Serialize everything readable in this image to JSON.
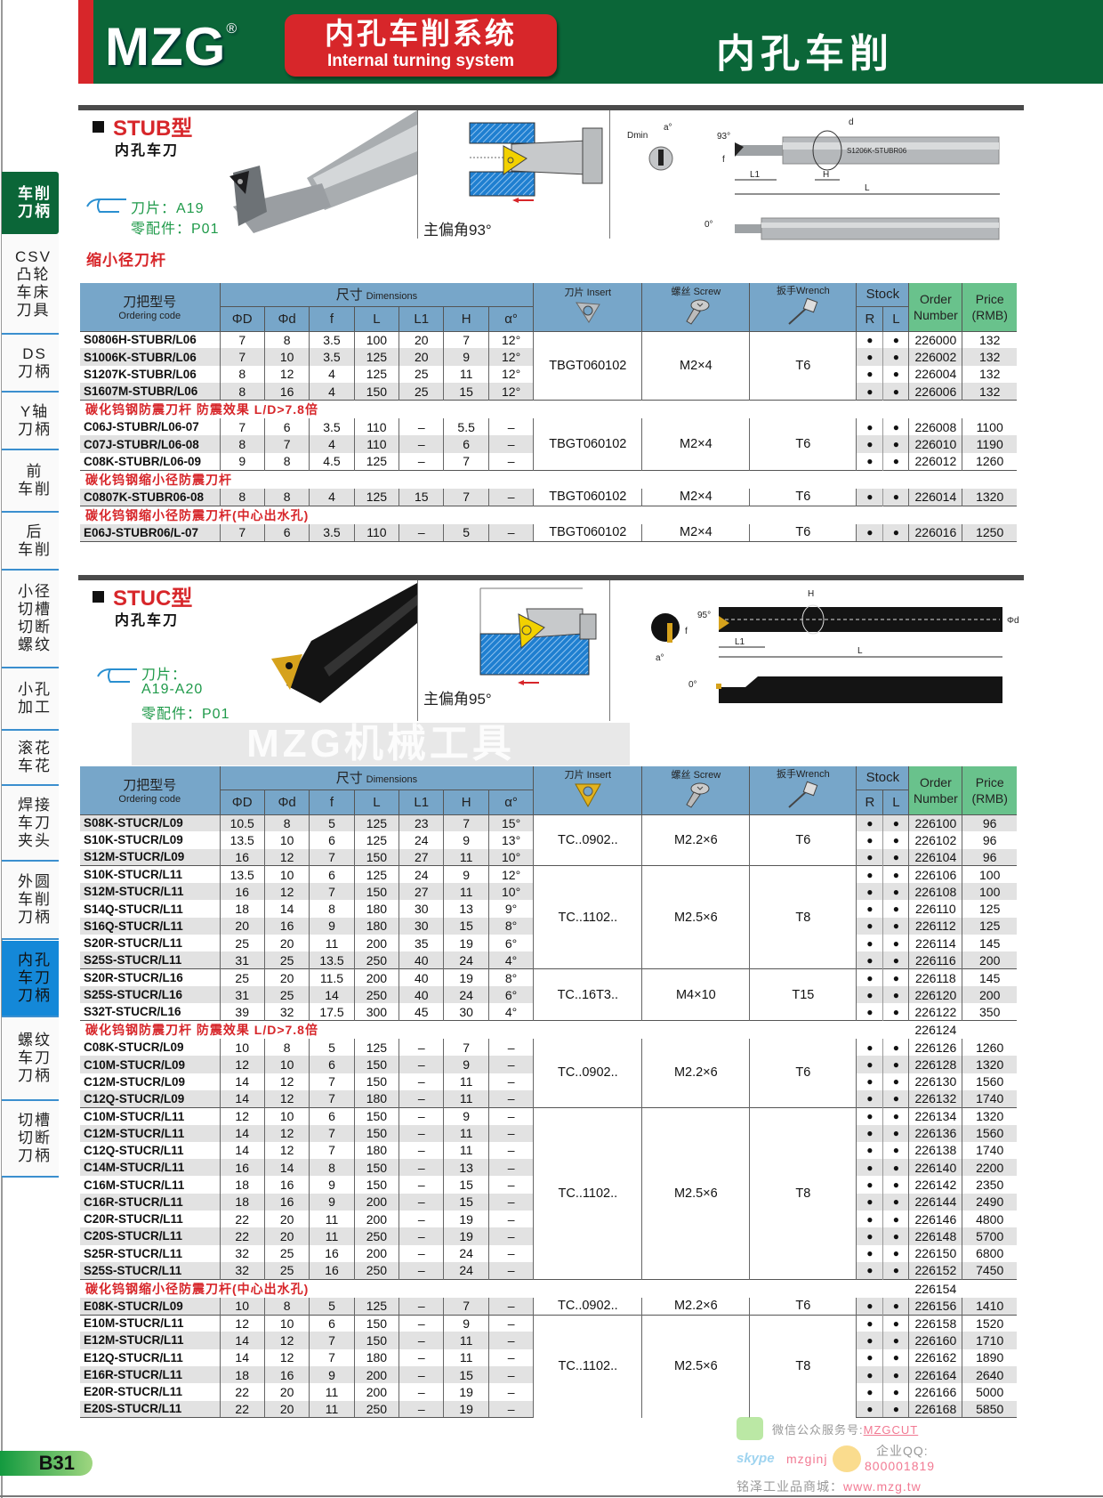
{
  "header": {
    "brand": "MZG",
    "registered": "®",
    "system_cn": "内孔车削系统",
    "system_en": "Internal turning system",
    "title": "内孔车削"
  },
  "colors": {
    "header_green": "#0b6638",
    "accent_red": "#d7262a",
    "table_header_blue": "#77a6c9",
    "table_header_green": "#69c28c",
    "active_tab_blue": "#1488d8"
  },
  "sidebar": {
    "items": [
      {
        "label": "车削\n刀柄",
        "state": "active-green"
      },
      {
        "label": "CSV\n凸轮\n车床\n刀具"
      },
      {
        "label": "DS\n刀柄"
      },
      {
        "label": "Y轴\n刀柄"
      },
      {
        "label": "前\n车削"
      },
      {
        "label": "后\n车削"
      },
      {
        "label": "小径\n切槽\n切断\n螺纹"
      },
      {
        "label": "小孔\n加工"
      },
      {
        "label": "滚花\n车花"
      },
      {
        "label": "焊接\n车刀\n夹头"
      },
      {
        "label": "外圆\n车削\n刀柄"
      },
      {
        "label": "内孔\n车刀\n刀柄",
        "state": "active-blue"
      },
      {
        "label": "螺纹\n车刀\n刀柄"
      },
      {
        "label": "切槽\n切断\n刀柄"
      }
    ]
  },
  "stub": {
    "title": "STUB型",
    "subtitle": "内孔车刀",
    "insert_label": "刀片：A19",
    "parts_label": "零配件：P01",
    "angle_caption": "主偏角93°",
    "reduced_label": "缩小径刀杆",
    "drawing": {
      "dmin": "Dmin",
      "a": "a°",
      "angle": "93°",
      "f": "f",
      "d": "d",
      "L1": "L1",
      "H": "H",
      "L": "L",
      "zero": "0°",
      "marking": "S1206K-STUBR06"
    }
  },
  "stuc": {
    "title": "STUC型",
    "subtitle": "内孔车刀",
    "insert_label": "刀片：",
    "insert_value": "A19-A20",
    "parts_label": "零配件：P01",
    "angle_caption": "主偏角95°",
    "drawing": {
      "H": "H",
      "angle": "95°",
      "f": "f",
      "d": "Φd",
      "L1": "L1",
      "L": "L",
      "a": "a°",
      "zero": "0°"
    }
  },
  "watermark": "MZG机械工具",
  "table_header": {
    "code_cn": "刀把型号",
    "code_en": "Ordering code",
    "dims_cn": "尺寸",
    "dims_en": "Dimensions",
    "insert": "刀片 Insert",
    "screw": "螺丝 Screw",
    "wrench": "扳手Wrench",
    "stock": "Stock",
    "order1": "Order",
    "order2": "Number",
    "price1": "Price",
    "price2": "(RMB)",
    "cols": [
      "ΦD",
      "Φd",
      "f",
      "L",
      "L1",
      "H",
      "α°"
    ],
    "stock_cols": [
      "R",
      "L"
    ]
  },
  "stub_table": {
    "groups": [
      {
        "label": "",
        "blocks": [
          {
            "insert": "TBGT060102",
            "screw": "M2×4",
            "wrench": "T6",
            "rows": [
              [
                "S0806H-STUBR/L06",
                "7",
                "8",
                "3.5",
                "100",
                "20",
                "7",
                "12°",
                "●",
                "●",
                "226000",
                "132"
              ],
              [
                "S1006K-STUBR/L06",
                "7",
                "10",
                "3.5",
                "125",
                "20",
                "9",
                "12°",
                "●",
                "●",
                "226002",
                "132"
              ],
              [
                "S1207K-STUBR/L06",
                "8",
                "12",
                "4",
                "125",
                "25",
                "11",
                "12°",
                "●",
                "●",
                "226004",
                "132"
              ],
              [
                "S1607M-STUBR/L06",
                "8",
                "16",
                "4",
                "150",
                "25",
                "15",
                "12°",
                "●",
                "●",
                "226006",
                "132"
              ]
            ]
          }
        ]
      },
      {
        "label": "碳化钨钢防震刀杆  防震效果 L/D>7.8倍",
        "blocks": [
          {
            "insert": "TBGT060102",
            "screw": "M2×4",
            "wrench": "T6",
            "rows": [
              [
                "C06J-STUBR/L06-07",
                "7",
                "6",
                "3.5",
                "110",
                "–",
                "5.5",
                "–",
                "●",
                "●",
                "226008",
                "1100"
              ],
              [
                "C07J-STUBR/L06-08",
                "8",
                "7",
                "4",
                "110",
                "–",
                "6",
                "–",
                "●",
                "●",
                "226010",
                "1190"
              ],
              [
                "C08K-STUBR/L06-09",
                "9",
                "8",
                "4.5",
                "125",
                "–",
                "7",
                "–",
                "●",
                "●",
                "226012",
                "1260"
              ]
            ]
          }
        ]
      },
      {
        "label": "碳化钨钢缩小径防震刀杆",
        "blocks": [
          {
            "insert": "TBGT060102",
            "screw": "M2×4",
            "wrench": "T6",
            "rows": [
              [
                "C0807K-STUBR06-08",
                "8",
                "8",
                "4",
                "125",
                "15",
                "7",
                "–",
                "●",
                "●",
                "226014",
                "1320"
              ]
            ]
          }
        ]
      },
      {
        "label": "碳化钨钢缩小径防震刀杆(中心出水孔)",
        "blocks": [
          {
            "insert": "TBGT060102",
            "screw": "M2×4",
            "wrench": "T6",
            "rows": [
              [
                "E06J-STUBR06/L-07",
                "7",
                "6",
                "3.5",
                "110",
                "–",
                "5",
                "–",
                "●",
                "●",
                "226016",
                "1250"
              ]
            ]
          }
        ]
      }
    ]
  },
  "stuc_table": {
    "groups": [
      {
        "label": "",
        "blocks": [
          {
            "insert": "TC..0902..",
            "screw": "M2.2×6",
            "wrench": "T6",
            "rows": [
              [
                "S08K-STUCR/L09",
                "10.5",
                "8",
                "5",
                "125",
                "23",
                "7",
                "15°",
                "●",
                "●",
                "226100",
                "96"
              ],
              [
                "S10K-STUCR/L09",
                "13.5",
                "10",
                "6",
                "125",
                "24",
                "9",
                "13°",
                "●",
                "●",
                "226102",
                "96"
              ],
              [
                "S12M-STUCR/L09",
                "16",
                "12",
                "7",
                "150",
                "27",
                "11",
                "10°",
                "●",
                "●",
                "226104",
                "96"
              ]
            ]
          },
          {
            "insert": "TC..1102..",
            "screw": "M2.5×6",
            "wrench": "T8",
            "rows": [
              [
                "S10K-STUCR/L11",
                "13.5",
                "10",
                "6",
                "125",
                "24",
                "9",
                "12°",
                "●",
                "●",
                "226106",
                "100"
              ],
              [
                "S12M-STUCR/L11",
                "16",
                "12",
                "7",
                "150",
                "27",
                "11",
                "10°",
                "●",
                "●",
                "226108",
                "100"
              ],
              [
                "S14Q-STUCR/L11",
                "18",
                "14",
                "8",
                "180",
                "30",
                "13",
                "9°",
                "●",
                "●",
                "226110",
                "125"
              ],
              [
                "S16Q-STUCR/L11",
                "20",
                "16",
                "9",
                "180",
                "30",
                "15",
                "8°",
                "●",
                "●",
                "226112",
                "125"
              ],
              [
                "S20R-STUCR/L11",
                "25",
                "20",
                "11",
                "200",
                "35",
                "19",
                "6°",
                "●",
                "●",
                "226114",
                "145"
              ],
              [
                "S25S-STUCR/L11",
                "31",
                "25",
                "13.5",
                "250",
                "40",
                "24",
                "4°",
                "●",
                "●",
                "226116",
                "200"
              ]
            ]
          },
          {
            "insert": "TC..16T3..",
            "screw": "M4×10",
            "wrench": "T15",
            "rows": [
              [
                "S20R-STUCR/L16",
                "25",
                "20",
                "11.5",
                "200",
                "40",
                "19",
                "8°",
                "●",
                "●",
                "226118",
                "145"
              ],
              [
                "S25S-STUCR/L16",
                "31",
                "25",
                "14",
                "250",
                "40",
                "24",
                "6°",
                "●",
                "●",
                "226120",
                "200"
              ],
              [
                "S32T-STUCR/L16",
                "39",
                "32",
                "17.5",
                "300",
                "45",
                "30",
                "4°",
                "●",
                "●",
                "226122",
                "350"
              ]
            ]
          }
        ]
      },
      {
        "label": "碳化钨钢防震刀杆  防震效果 L/D>7.8倍",
        "label_order": "226124",
        "blocks": [
          {
            "insert": "TC..0902..",
            "screw": "M2.2×6",
            "wrench": "T6",
            "rows": [
              [
                "C08K-STUCR/L09",
                "10",
                "8",
                "5",
                "125",
                "–",
                "7",
                "–",
                "●",
                "●",
                "226126",
                "1260"
              ],
              [
                "C10M-STUCR/L09",
                "12",
                "10",
                "6",
                "150",
                "–",
                "9",
                "–",
                "●",
                "●",
                "226128",
                "1320"
              ],
              [
                "C12M-STUCR/L09",
                "14",
                "12",
                "7",
                "150",
                "–",
                "11",
                "–",
                "●",
                "●",
                "226130",
                "1560"
              ],
              [
                "C12Q-STUCR/L09",
                "14",
                "12",
                "7",
                "180",
                "–",
                "11",
                "–",
                "●",
                "●",
                "226132",
                "1740"
              ]
            ]
          },
          {
            "insert": "TC..1102..",
            "screw": "M2.5×6",
            "wrench": "T8",
            "rows": [
              [
                "C10M-STUCR/L11",
                "12",
                "10",
                "6",
                "150",
                "–",
                "9",
                "–",
                "●",
                "●",
                "226134",
                "1320"
              ],
              [
                "C12M-STUCR/L11",
                "14",
                "12",
                "7",
                "150",
                "–",
                "11",
                "–",
                "●",
                "●",
                "226136",
                "1560"
              ],
              [
                "C12Q-STUCR/L11",
                "14",
                "12",
                "7",
                "180",
                "–",
                "11",
                "–",
                "●",
                "●",
                "226138",
                "1740"
              ],
              [
                "C14M-STUCR/L11",
                "16",
                "14",
                "8",
                "150",
                "–",
                "13",
                "–",
                "●",
                "●",
                "226140",
                "2200"
              ],
              [
                "C16M-STUCR/L11",
                "18",
                "16",
                "9",
                "150",
                "–",
                "15",
                "–",
                "●",
                "●",
                "226142",
                "2350"
              ],
              [
                "C16R-STUCR/L11",
                "18",
                "16",
                "9",
                "200",
                "–",
                "15",
                "–",
                "●",
                "●",
                "226144",
                "2490"
              ],
              [
                "C20R-STUCR/L11",
                "22",
                "20",
                "11",
                "200",
                "–",
                "19",
                "–",
                "●",
                "●",
                "226146",
                "4800"
              ],
              [
                "C20S-STUCR/L11",
                "22",
                "20",
                "11",
                "250",
                "–",
                "19",
                "–",
                "●",
                "●",
                "226148",
                "5700"
              ],
              [
                "S25R-STUCR/L11",
                "32",
                "25",
                "16",
                "200",
                "–",
                "24",
                "–",
                "●",
                "●",
                "226150",
                "6800"
              ],
              [
                "S25S-STUCR/L11",
                "32",
                "25",
                "16",
                "250",
                "–",
                "24",
                "–",
                "●",
                "●",
                "226152",
                "7450"
              ]
            ]
          }
        ]
      },
      {
        "label": "碳化钨钢缩小径防震刀杆(中心出水孔)",
        "label_order": "226154",
        "blocks": [
          {
            "insert": "TC..0902..",
            "screw": "M2.2×6",
            "wrench": "T6",
            "rows": [
              [
                "E08K-STUCR/L09",
                "10",
                "8",
                "5",
                "125",
                "–",
                "7",
                "–",
                "●",
                "●",
                "226156",
                "1410"
              ]
            ]
          },
          {
            "insert": "TC..1102..",
            "screw": "M2.5×6",
            "wrench": "T8",
            "rows": [
              [
                "E10M-STUCR/L11",
                "12",
                "10",
                "6",
                "150",
                "–",
                "9",
                "–",
                "●",
                "●",
                "226158",
                "1520"
              ],
              [
                "E12M-STUCR/L11",
                "14",
                "12",
                "7",
                "150",
                "–",
                "11",
                "–",
                "●",
                "●",
                "226160",
                "1710"
              ],
              [
                "E12Q-STUCR/L11",
                "14",
                "12",
                "7",
                "180",
                "–",
                "11",
                "–",
                "●",
                "●",
                "226162",
                "1890"
              ],
              [
                "E16R-STUCR/L11",
                "18",
                "16",
                "9",
                "200",
                "–",
                "15",
                "–",
                "●",
                "●",
                "226164",
                "2640"
              ],
              [
                "E20R-STUCR/L11",
                "22",
                "20",
                "11",
                "200",
                "–",
                "19",
                "–",
                "●",
                "●",
                "226166",
                "5000"
              ],
              [
                "E20S-STUCR/L11",
                "22",
                "20",
                "11",
                "250",
                "–",
                "19",
                "–",
                "●",
                "●",
                "226168",
                "5850"
              ]
            ]
          }
        ]
      }
    ]
  },
  "footer": {
    "page": "B31",
    "wechat_label": "微信公众服务号:",
    "wechat_id": "MZGCUT",
    "skype_logo": "skype",
    "skype_id": "mzginj",
    "qq_label": "企业QQ:",
    "qq_id": "800001819",
    "shop_label": "铭泽工业品商城：",
    "shop_url": "www.mzg.tw"
  }
}
